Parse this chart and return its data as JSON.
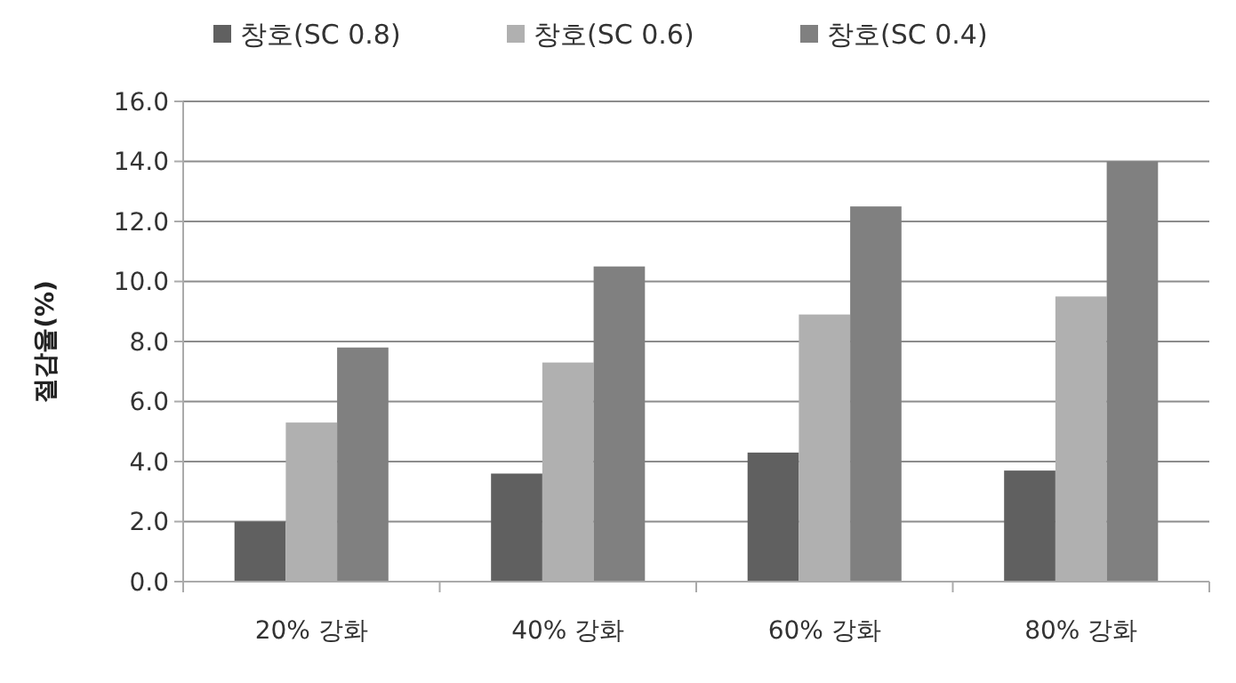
{
  "chart_data": {
    "type": "bar",
    "ylabel": "절감율(%)",
    "categories": [
      "20% 강화",
      "40% 강화",
      "60% 강화",
      "80% 강화"
    ],
    "series": [
      {
        "name": "창호(SC 0.8)",
        "color": "#606060",
        "values": [
          2.0,
          3.6,
          4.3,
          3.7
        ]
      },
      {
        "name": "창호(SC 0.6)",
        "color": "#b0b0b0",
        "values": [
          5.3,
          7.3,
          8.9,
          9.5
        ]
      },
      {
        "name": "창호(SC 0.4)",
        "color": "#808080",
        "values": [
          7.8,
          10.5,
          12.5,
          14.0
        ]
      }
    ],
    "ylim": [
      0,
      16
    ],
    "yticks": [
      {
        "value": 0,
        "label": "0.0"
      },
      {
        "value": 2,
        "label": "2.0"
      },
      {
        "value": 4,
        "label": "4.0"
      },
      {
        "value": 6,
        "label": "6.0"
      },
      {
        "value": 8,
        "label": "8.0"
      },
      {
        "value": 10,
        "label": "10.0"
      },
      {
        "value": 12,
        "label": "12.0"
      },
      {
        "value": 14,
        "label": "14.0"
      },
      {
        "value": 16,
        "label": "16.0"
      }
    ],
    "grid": "y",
    "legend": "top"
  }
}
